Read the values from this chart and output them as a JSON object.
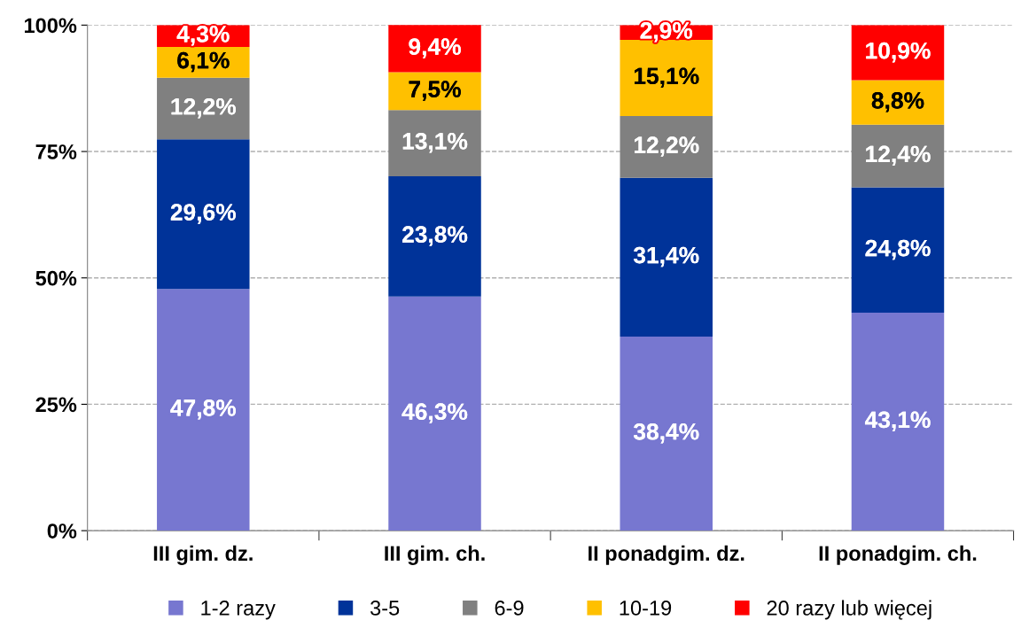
{
  "chart_data": {
    "type": "bar",
    "stacked": true,
    "categories": [
      "III gim. dz.",
      "III gim. ch.",
      "II ponadgim. dz.",
      "II ponadgim. ch."
    ],
    "series": [
      {
        "name": "1-2 razy",
        "color": "#7777d0",
        "values": [
          47.8,
          46.3,
          38.4,
          43.1
        ],
        "value_labels": [
          "47,8%",
          "46,3%",
          "38,4%",
          "43,1%"
        ]
      },
      {
        "name": "3-5",
        "color": "#003399",
        "values": [
          29.6,
          23.8,
          31.4,
          24.8
        ],
        "value_labels": [
          "29,6%",
          "23,8%",
          "31,4%",
          "24,8%"
        ]
      },
      {
        "name": "6-9",
        "color": "#808080",
        "values": [
          12.2,
          13.1,
          12.2,
          12.4
        ],
        "value_labels": [
          "12,2%",
          "13,1%",
          "12,2%",
          "12,4%"
        ]
      },
      {
        "name": "10-19",
        "color": "#ffc000",
        "values": [
          6.1,
          7.5,
          15.1,
          8.8
        ],
        "value_labels": [
          "6,1%",
          "7,5%",
          "15,1%",
          "8,8%"
        ]
      },
      {
        "name": "20 razy lub więcej",
        "color": "#ff0000",
        "values": [
          4.3,
          9.4,
          2.9,
          10.9
        ],
        "value_labels": [
          "4,3%",
          "9,4%",
          "2,9%",
          "10,9%"
        ]
      }
    ],
    "ylim": [
      0,
      100
    ],
    "yticks": [
      {
        "value": 0,
        "label": "0%"
      },
      {
        "value": 25,
        "label": "25%"
      },
      {
        "value": 50,
        "label": "50%"
      },
      {
        "value": 75,
        "label": "75%"
      },
      {
        "value": 100,
        "label": "100%"
      }
    ],
    "grid": "y",
    "legend": "bottom"
  }
}
